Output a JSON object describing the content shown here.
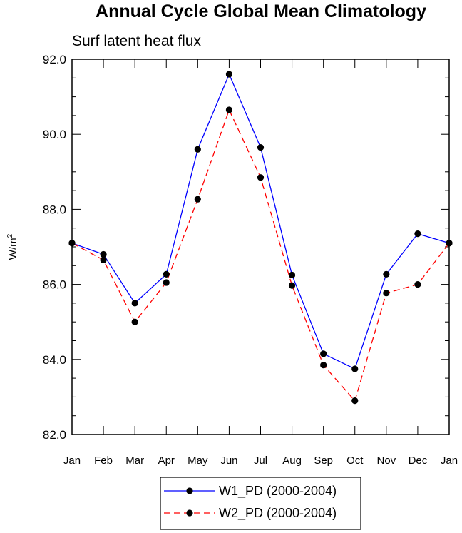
{
  "chart_data": {
    "type": "line",
    "title": "Annual Cycle Global Mean Climatology",
    "subtitle": "Surf latent heat flux",
    "ylabel_base": "W/m",
    "ylabel_sup": "2",
    "xlabel": "",
    "categories": [
      "Jan",
      "Feb",
      "Mar",
      "Apr",
      "May",
      "Jun",
      "Jul",
      "Aug",
      "Sep",
      "Oct",
      "Nov",
      "Dec",
      "Jan"
    ],
    "ylim": [
      82.0,
      92.0
    ],
    "yticks": [
      82.0,
      84.0,
      86.0,
      88.0,
      90.0,
      92.0
    ],
    "ytick_labels": [
      "82.0",
      "84.0",
      "86.0",
      "88.0",
      "90.0",
      "92.0"
    ],
    "series": [
      {
        "name": "W1_PD (2000-2004)",
        "color": "#0000ff",
        "dash": "solid",
        "values": [
          87.1,
          86.8,
          85.5,
          86.27,
          89.6,
          91.6,
          89.65,
          86.25,
          84.15,
          83.75,
          86.27,
          87.35,
          87.1
        ]
      },
      {
        "name": "W2_PD (2000-2004)",
        "color": "#ff0000",
        "dash": "dashed",
        "values": [
          87.1,
          86.65,
          85.0,
          86.05,
          88.27,
          90.65,
          88.85,
          85.97,
          83.85,
          82.9,
          85.77,
          86.0,
          87.1
        ]
      }
    ],
    "legend_position": "bottom-center",
    "marker_color": "#000000"
  }
}
